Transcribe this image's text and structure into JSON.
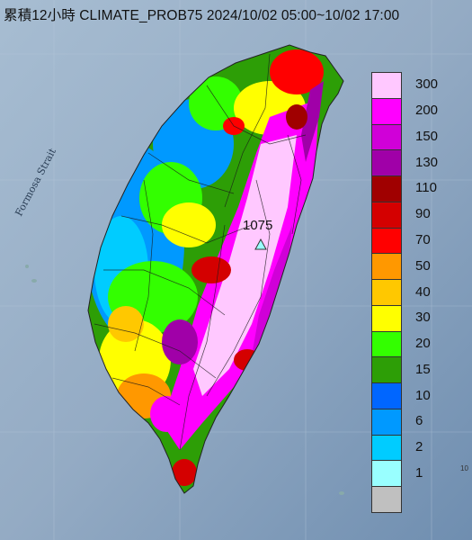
{
  "title": "累積12小時 CLIMATE_PROB75 2024/10/02 05:00~10/02 17:00",
  "strait_label": "Formosa Strait",
  "max_station": {
    "value": "1075",
    "marker": "triangle-marker"
  },
  "edge_mark": "10",
  "legend": [
    {
      "label": "300",
      "color": "#ffc8ff"
    },
    {
      "label": "200",
      "color": "#ff00ff"
    },
    {
      "label": "150",
      "color": "#d000d8"
    },
    {
      "label": "130",
      "color": "#a000a8"
    },
    {
      "label": "110",
      "color": "#a00000"
    },
    {
      "label": "90",
      "color": "#d40000"
    },
    {
      "label": "70",
      "color": "#ff0000"
    },
    {
      "label": "50",
      "color": "#ff9800"
    },
    {
      "label": "40",
      "color": "#ffc800"
    },
    {
      "label": "30",
      "color": "#ffff00"
    },
    {
      "label": "20",
      "color": "#33ff00"
    },
    {
      "label": "15",
      "color": "#2d9e06"
    },
    {
      "label": "10",
      "color": "#0066ff"
    },
    {
      "label": "6",
      "color": "#0099ff"
    },
    {
      "label": "2",
      "color": "#00ccff"
    },
    {
      "label": "1",
      "color": "#99ffff"
    },
    {
      "label": "",
      "color": "#c0c0c0"
    }
  ]
}
